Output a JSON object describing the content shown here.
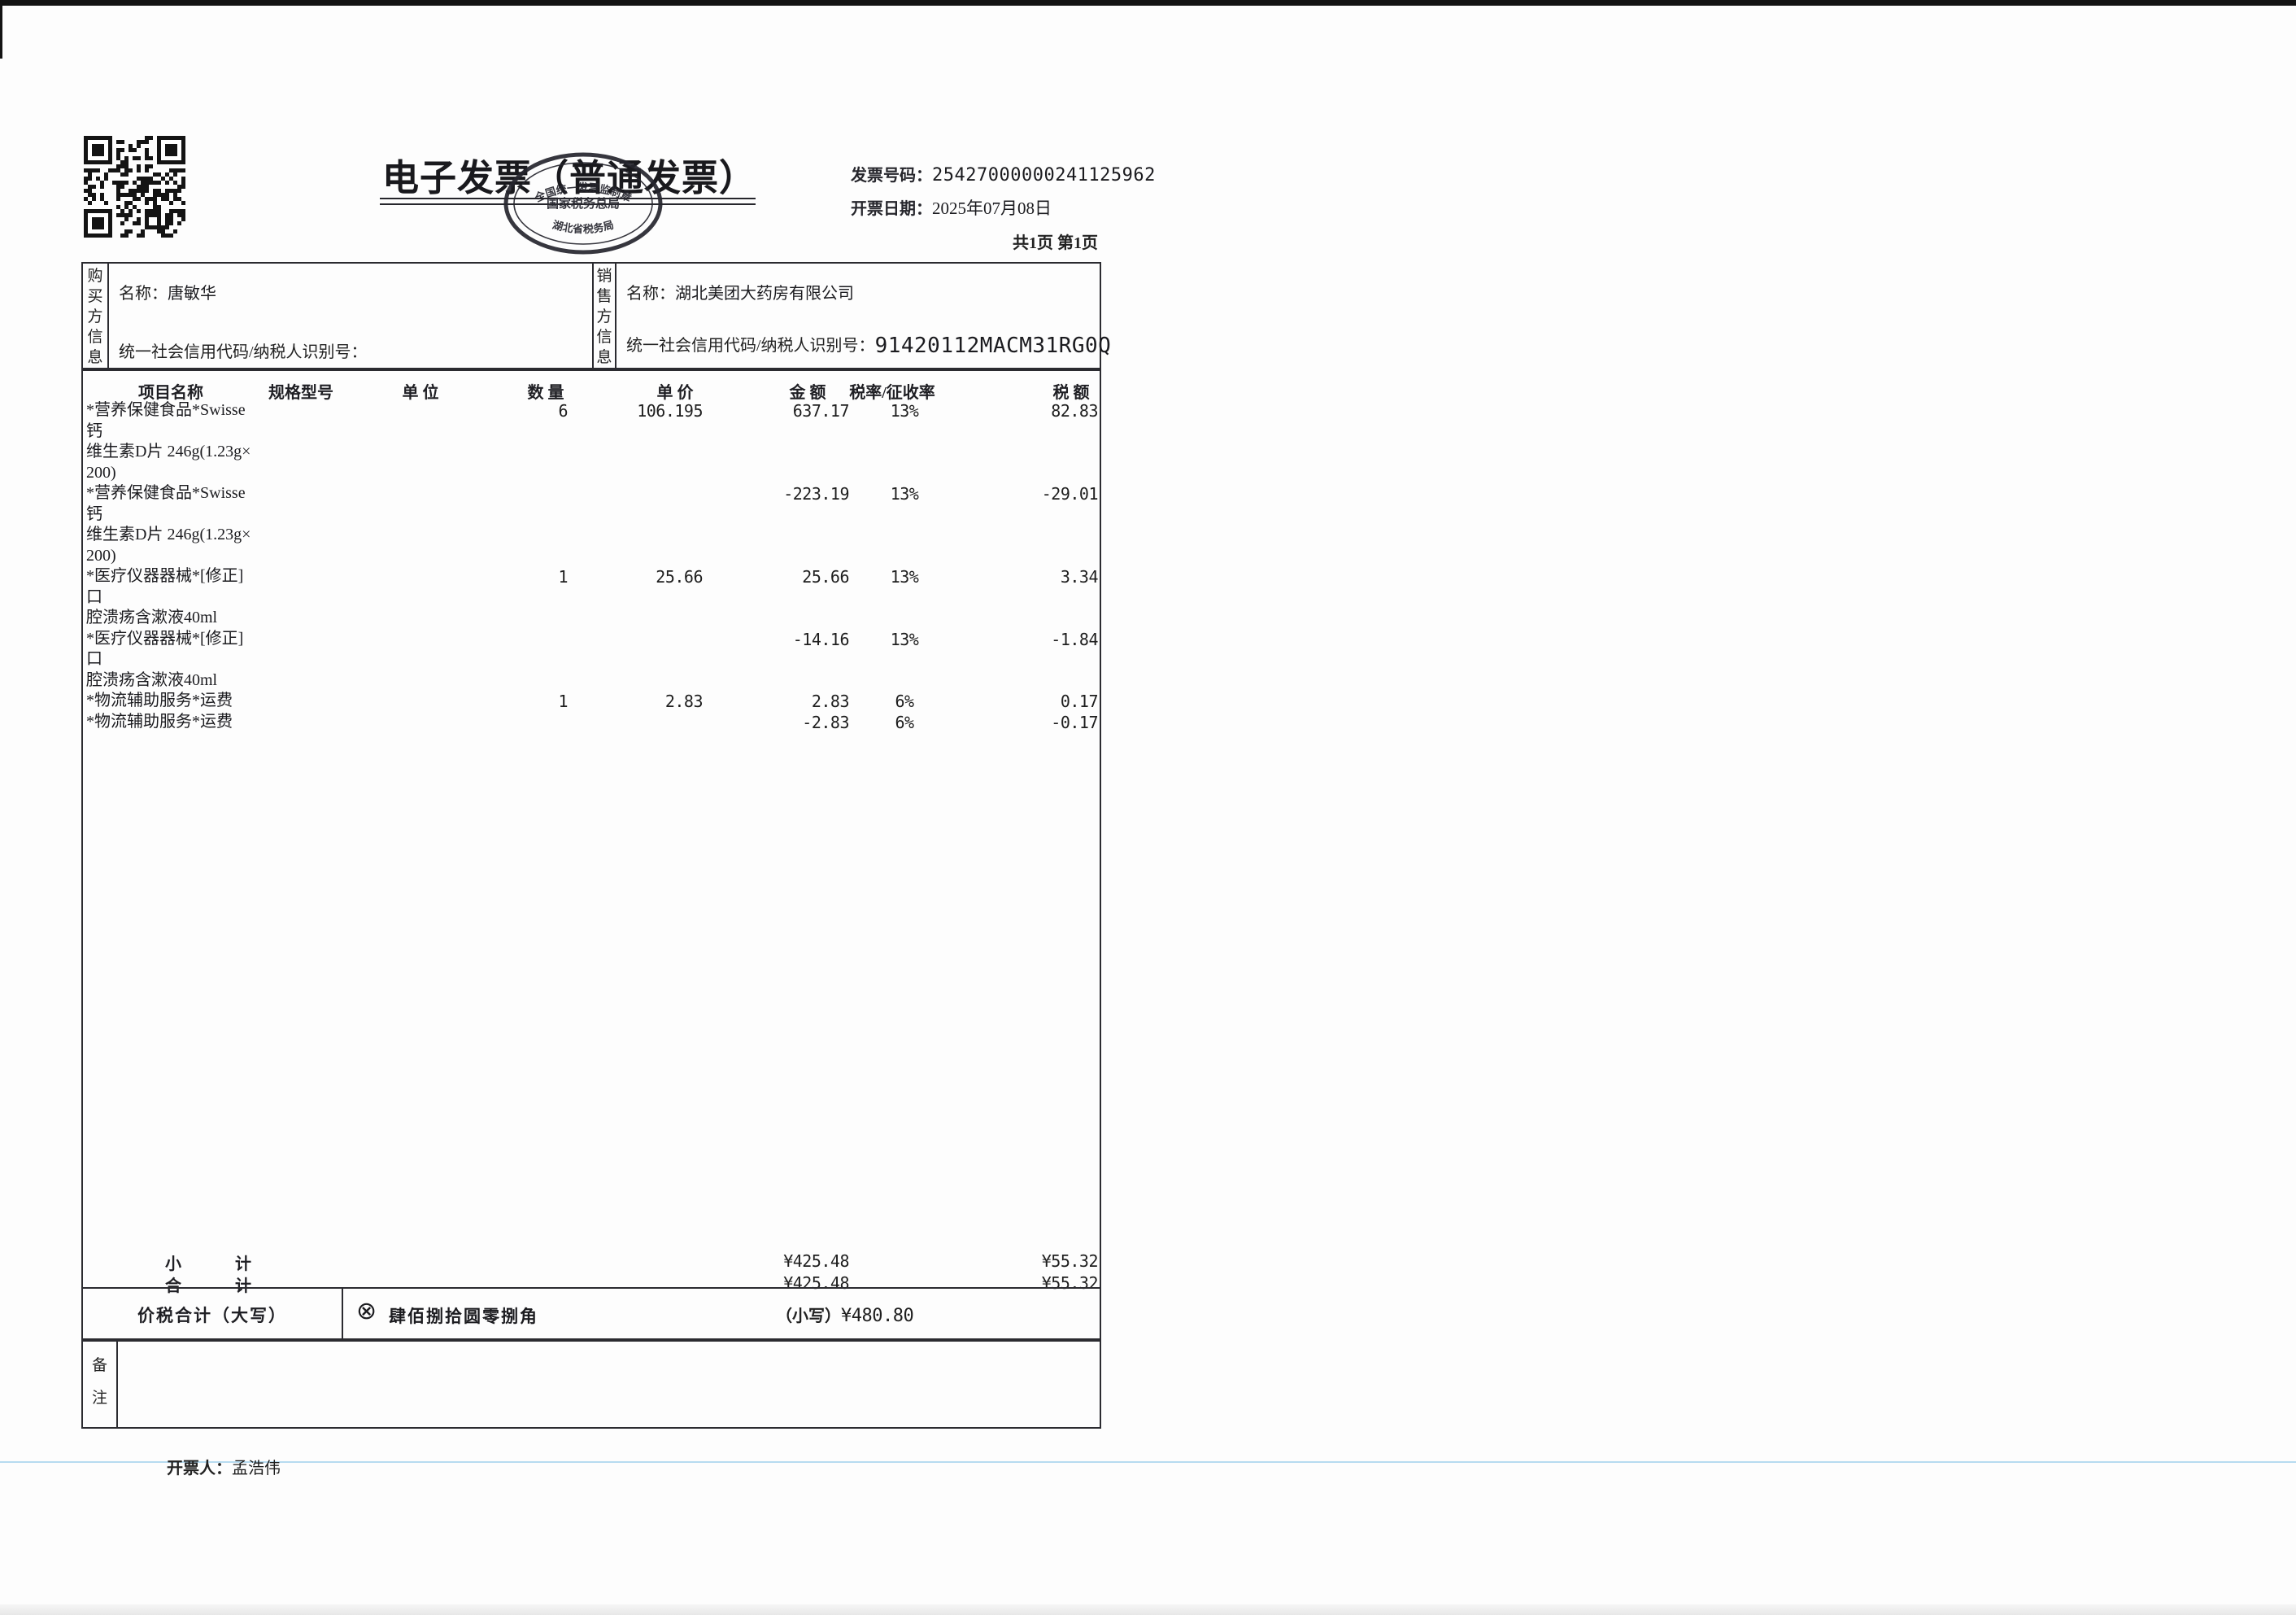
{
  "header": {
    "title": "电子发票（普通发票）",
    "invoice_no_label": "发票号码：",
    "invoice_no": "25427000000241125962",
    "date_label": "开票日期：",
    "date": "2025年07月08日",
    "pages": "共1页 第1页"
  },
  "stamp": {
    "arc": "全国统一发票监制章",
    "line1": "国家税务总局",
    "line2": "湖北省税务局"
  },
  "parties": {
    "buyer": {
      "section_label": "购买方信息",
      "name_label": "名称：",
      "name": "唐敏华",
      "tax_label": "统一社会信用代码/纳税人识别号：",
      "tax_id": ""
    },
    "seller": {
      "section_label": "销售方信息",
      "name_label": "名称：",
      "name": "湖北美团大药房有限公司",
      "tax_label": "统一社会信用代码/纳税人识别号：",
      "tax_id": "91420112MACM31RG0Q"
    }
  },
  "table": {
    "headers": [
      "项目名称",
      "规格型号",
      "单 位",
      "数 量",
      "单 价",
      "金 额",
      "税率/征收率",
      "税 额"
    ],
    "rows": [
      {
        "name": "*营养保健食品*Swisse钙\n维生素D片 246g(1.23g×\n200)",
        "qty": "6",
        "price": "106.195",
        "amount": "637.17",
        "rate": "13%",
        "tax": "82.83"
      },
      {
        "name": "*营养保健食品*Swisse钙\n维生素D片 246g(1.23g×\n200)",
        "qty": "",
        "price": "",
        "amount": "-223.19",
        "rate": "13%",
        "tax": "-29.01"
      },
      {
        "name": "*医疗仪器器械*[修正]口\n腔溃疡含漱液40ml",
        "qty": "1",
        "price": "25.66",
        "amount": "25.66",
        "rate": "13%",
        "tax": "3.34"
      },
      {
        "name": "*医疗仪器器械*[修正]口\n腔溃疡含漱液40ml",
        "qty": "",
        "price": "",
        "amount": "-14.16",
        "rate": "13%",
        "tax": "-1.84"
      },
      {
        "name": "*物流辅助服务*运费",
        "qty": "1",
        "price": "2.83",
        "amount": "2.83",
        "rate": "6%",
        "tax": "0.17"
      },
      {
        "name": "*物流辅助服务*运费",
        "qty": "",
        "price": "",
        "amount": "-2.83",
        "rate": "6%",
        "tax": "-0.17"
      }
    ],
    "subtotal": {
      "label": "小计",
      "amount": "¥425.48",
      "tax": "¥55.32"
    },
    "total": {
      "label": "合计",
      "amount": "¥425.48",
      "tax": "¥55.32"
    },
    "grand": {
      "label": "价税合计（大写）",
      "symbol": "⊗",
      "words": "肆佰捌拾圆零捌角",
      "figures_label": "（小写）",
      "figures": "¥480.80"
    }
  },
  "remarks": {
    "label": "备注"
  },
  "footer": {
    "issuer_label": "开票人：",
    "issuer": "孟浩伟"
  }
}
